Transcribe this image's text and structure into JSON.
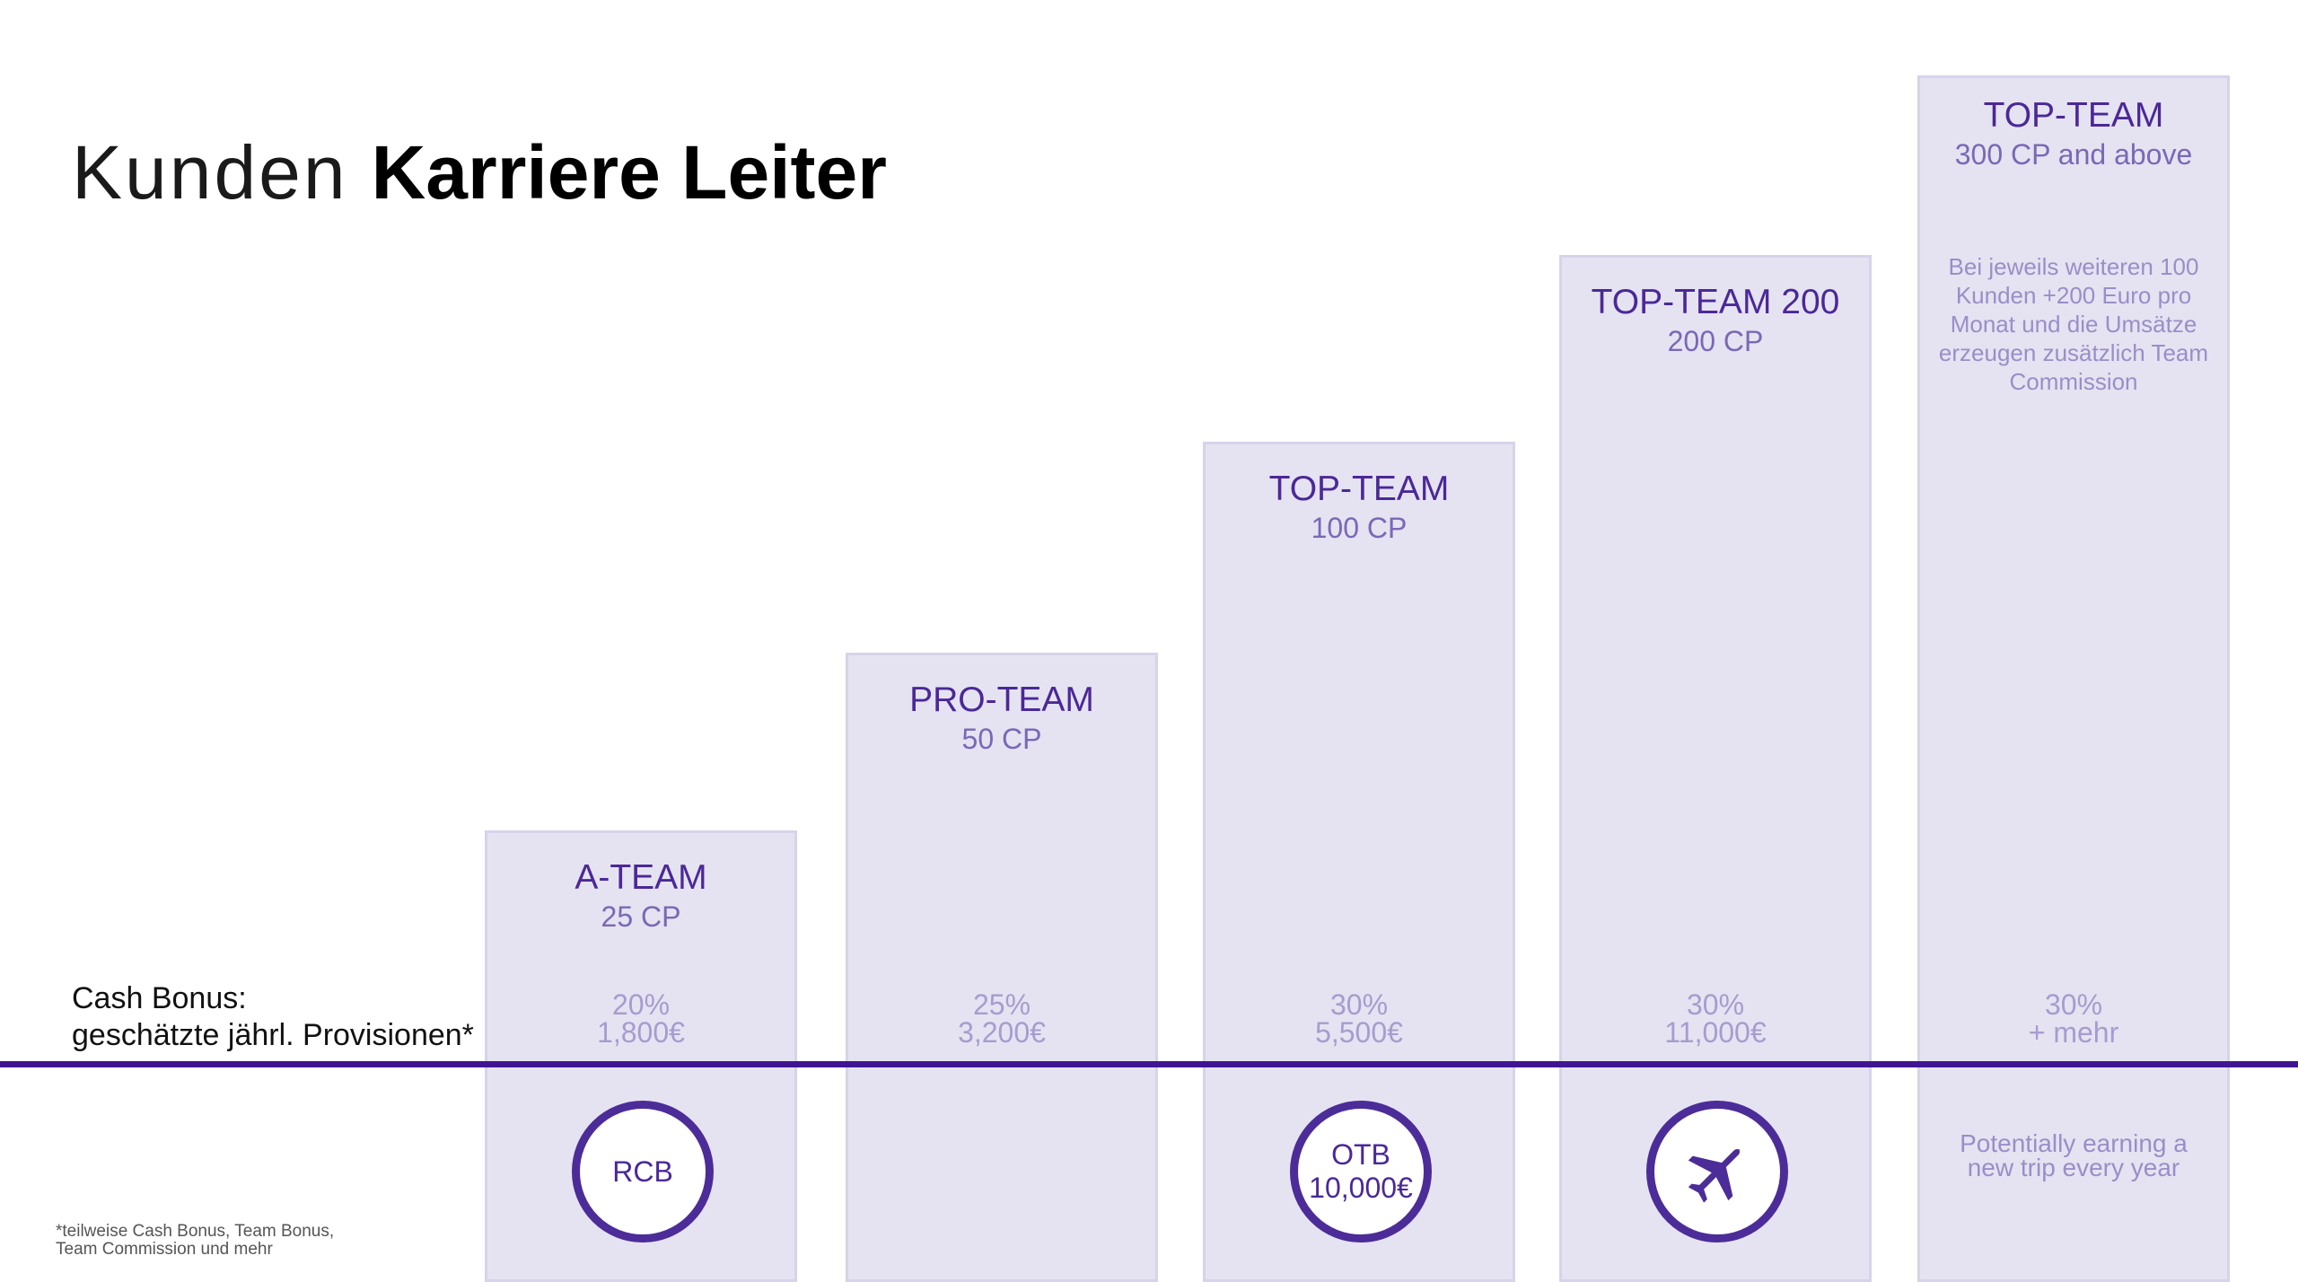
{
  "title": {
    "light": "Kunden",
    "bold": "Karriere Leiter"
  },
  "cash_bonus_label": {
    "line1": "Cash Bonus:",
    "line2": "geschätzte jährl. Provisionen*"
  },
  "levels": [
    {
      "name": "A-TEAM",
      "cp": "25 CP",
      "bonus_pct": "20%",
      "bonus_value": "1,800€",
      "badge": "RCB"
    },
    {
      "name": "PRO-TEAM",
      "cp": "50 CP",
      "bonus_pct": "25%",
      "bonus_value": "3,200€"
    },
    {
      "name": "TOP-TEAM",
      "cp": "100 CP",
      "bonus_pct": "30%",
      "bonus_value": "5,500€",
      "badge_line1": "OTB",
      "badge_line2": "10,000€"
    },
    {
      "name": "TOP-TEAM 200",
      "cp": "200 CP",
      "bonus_pct": "30%",
      "bonus_value": "11,000€",
      "badge_icon": "airplane-icon"
    },
    {
      "name": "TOP-TEAM",
      "cp": "300 CP and above",
      "note": "Bei jeweils weiteren 100 Kunden +200 Euro pro Monat und die Umsätze erzeugen zusätzlich Team Commission",
      "bonus_pct": "30%",
      "bonus_value": "+ mehr",
      "trip_note": "Potentially earning a new trip every year"
    }
  ],
  "footnote": {
    "line1": "*teilweise Cash Bonus, Team Bonus,",
    "line2": "Team Commission und mehr"
  },
  "colors": {
    "accent": "#3f1592",
    "column_fill": "#e5e3f1",
    "column_border": "#d6d3ea",
    "heading": "#4b2898"
  }
}
